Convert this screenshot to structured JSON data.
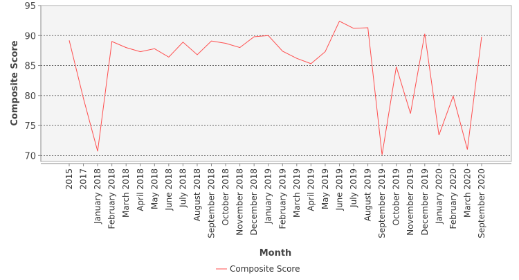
{
  "chart_data": {
    "type": "line",
    "title": "",
    "xlabel": "Month",
    "ylabel": "Composite Score",
    "ylim": [
      69,
      95
    ],
    "yticks": [
      70,
      75,
      80,
      85,
      90,
      95
    ],
    "grid": true,
    "legend_position": "bottom",
    "colors": {
      "series": "#ff4d4d",
      "plot_bg": "#f4f4f4",
      "grid": "#555555",
      "axis": "#888888"
    },
    "categories": [
      "2015",
      "2017",
      "January 2018",
      "February 2018",
      "March 2018",
      "April 2018",
      "May 2018",
      "June 2018",
      "July 2018",
      "August 2018",
      "September 2018",
      "October 2018",
      "November 2018",
      "December 2018",
      "January 2019",
      "February 2019",
      "March 2019",
      "April 2019",
      "May 2019",
      "June 2019",
      "July 2019",
      "August 2019",
      "September 2019",
      "October 2019",
      "November 2019",
      "December 2019",
      "January 2020",
      "February 2020",
      "March 2020",
      "September 2020"
    ],
    "series": [
      {
        "name": "Composite Score",
        "values": [
          89.2,
          79.5,
          70.7,
          89.0,
          88.0,
          87.3,
          87.8,
          86.4,
          88.9,
          86.8,
          89.1,
          88.7,
          88.0,
          89.8,
          90.0,
          87.4,
          86.2,
          85.3,
          87.3,
          92.4,
          91.2,
          91.3,
          70.1,
          84.8,
          77.0,
          90.3,
          73.4,
          79.9,
          71.0,
          89.8
        ]
      }
    ]
  }
}
